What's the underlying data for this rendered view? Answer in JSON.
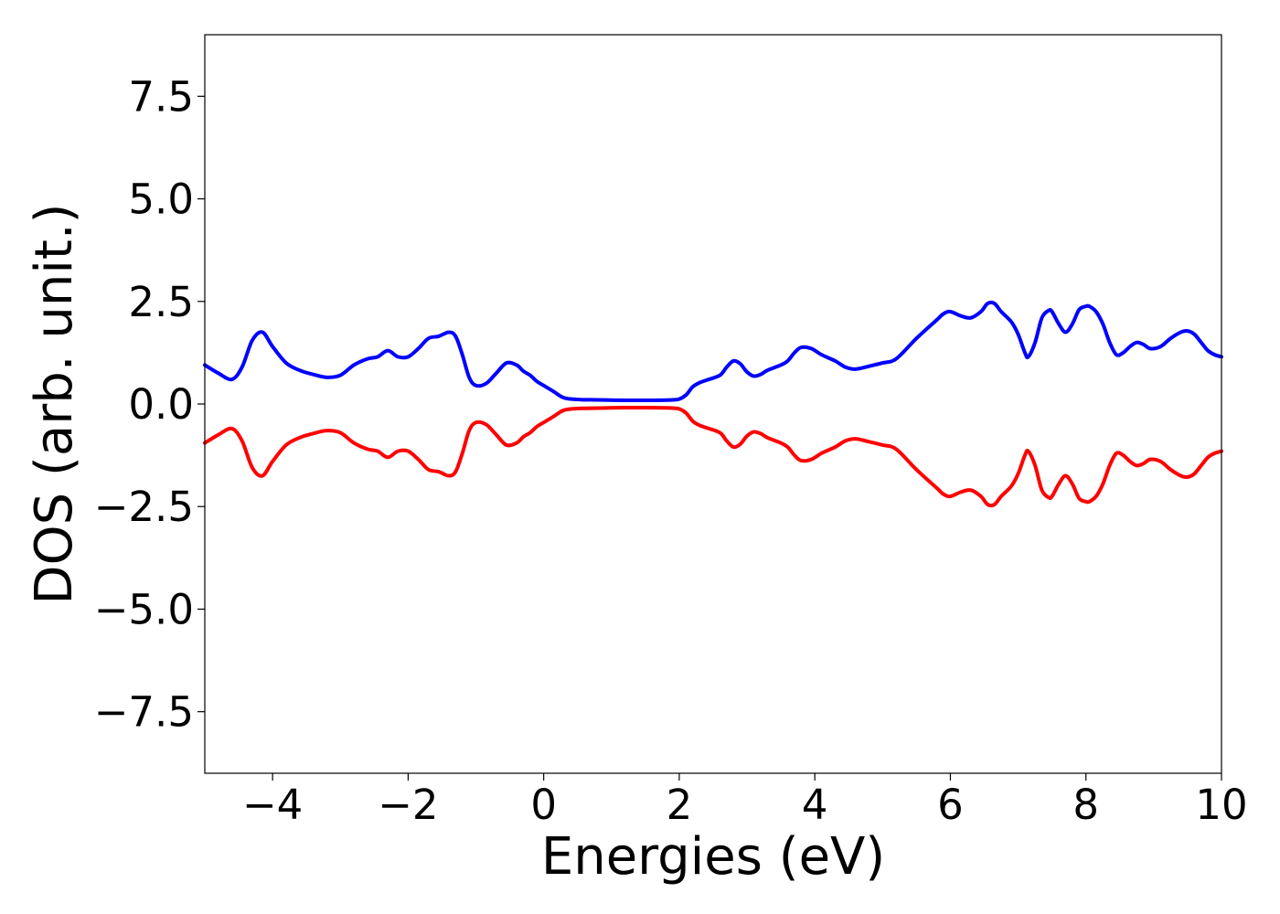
{
  "chart_data": {
    "type": "line",
    "title": "",
    "xlabel": "Energies (eV)",
    "ylabel": "DOS (arb. unit.)",
    "xlim": [
      -5,
      10
    ],
    "ylim": [
      -9,
      9
    ],
    "grid": false,
    "x_ticks": [
      -4,
      -2,
      0,
      2,
      4,
      6,
      8,
      10
    ],
    "x_tick_labels": [
      "−4",
      "−2",
      "0",
      "2",
      "4",
      "6",
      "8",
      "10"
    ],
    "y_ticks": [
      -7.5,
      -5.0,
      -2.5,
      0.0,
      2.5,
      5.0,
      7.5
    ],
    "y_tick_labels": [
      "−7.5",
      "−5.0",
      "−2.5",
      "0.0",
      "2.5",
      "5.0",
      "7.5"
    ],
    "series": [
      {
        "color": "#0000ff",
        "x": [
          -5.0,
          -4.8,
          -4.6,
          -4.45,
          -4.3,
          -4.15,
          -4.0,
          -3.8,
          -3.6,
          -3.4,
          -3.2,
          -3.0,
          -2.8,
          -2.6,
          -2.45,
          -2.3,
          -2.15,
          -2.0,
          -1.85,
          -1.7,
          -1.55,
          -1.4,
          -1.3,
          -1.2,
          -1.1,
          -1.0,
          -0.85,
          -0.7,
          -0.55,
          -0.4,
          -0.3,
          -0.2,
          -0.1,
          0.0,
          0.15,
          0.3,
          0.5,
          0.8,
          1.2,
          1.6,
          1.9,
          2.0,
          2.1,
          2.2,
          2.3,
          2.4,
          2.6,
          2.7,
          2.8,
          2.9,
          3.0,
          3.1,
          3.2,
          3.3,
          3.5,
          3.6,
          3.7,
          3.8,
          3.95,
          4.1,
          4.3,
          4.45,
          4.6,
          4.8,
          5.0,
          5.2,
          5.5,
          5.8,
          5.9,
          6.0,
          6.15,
          6.3,
          6.45,
          6.55,
          6.65,
          6.75,
          6.9,
          7.0,
          7.1,
          7.15,
          7.25,
          7.35,
          7.45,
          7.5,
          7.6,
          7.7,
          7.8,
          7.9,
          8.0,
          8.05,
          8.15,
          8.25,
          8.35,
          8.45,
          8.55,
          8.65,
          8.75,
          8.85,
          8.95,
          9.1,
          9.25,
          9.4,
          9.5,
          9.6,
          9.7,
          9.8,
          9.9,
          10.0
        ],
        "values": [
          0.95,
          0.75,
          0.6,
          0.9,
          1.55,
          1.75,
          1.4,
          1.0,
          0.82,
          0.72,
          0.65,
          0.7,
          0.95,
          1.1,
          1.15,
          1.3,
          1.15,
          1.15,
          1.35,
          1.6,
          1.65,
          1.75,
          1.65,
          1.2,
          0.65,
          0.45,
          0.5,
          0.75,
          1.0,
          0.95,
          0.8,
          0.7,
          0.55,
          0.45,
          0.3,
          0.15,
          0.11,
          0.1,
          0.09,
          0.09,
          0.1,
          0.12,
          0.22,
          0.42,
          0.52,
          0.58,
          0.7,
          0.9,
          1.05,
          0.98,
          0.78,
          0.68,
          0.72,
          0.82,
          0.95,
          1.05,
          1.25,
          1.38,
          1.35,
          1.2,
          1.05,
          0.9,
          0.85,
          0.92,
          1.0,
          1.1,
          1.6,
          2.05,
          2.2,
          2.25,
          2.15,
          2.1,
          2.25,
          2.45,
          2.45,
          2.25,
          2.0,
          1.7,
          1.25,
          1.15,
          1.5,
          2.1,
          2.28,
          2.25,
          1.95,
          1.75,
          1.95,
          2.3,
          2.38,
          2.38,
          2.25,
          1.95,
          1.5,
          1.2,
          1.25,
          1.4,
          1.5,
          1.45,
          1.35,
          1.4,
          1.6,
          1.75,
          1.78,
          1.7,
          1.5,
          1.3,
          1.2,
          1.15
        ]
      },
      {
        "color": "#ff0000",
        "x": [
          -5.0,
          -4.8,
          -4.6,
          -4.45,
          -4.3,
          -4.15,
          -4.0,
          -3.8,
          -3.6,
          -3.4,
          -3.2,
          -3.0,
          -2.8,
          -2.6,
          -2.45,
          -2.3,
          -2.15,
          -2.0,
          -1.85,
          -1.7,
          -1.55,
          -1.4,
          -1.3,
          -1.2,
          -1.1,
          -1.0,
          -0.85,
          -0.7,
          -0.55,
          -0.4,
          -0.3,
          -0.2,
          -0.1,
          0.0,
          0.15,
          0.3,
          0.5,
          0.8,
          1.2,
          1.6,
          1.9,
          2.0,
          2.1,
          2.2,
          2.3,
          2.4,
          2.6,
          2.7,
          2.8,
          2.9,
          3.0,
          3.1,
          3.2,
          3.3,
          3.5,
          3.6,
          3.7,
          3.8,
          3.95,
          4.1,
          4.3,
          4.45,
          4.6,
          4.8,
          5.0,
          5.2,
          5.5,
          5.8,
          5.9,
          6.0,
          6.15,
          6.3,
          6.45,
          6.55,
          6.65,
          6.75,
          6.9,
          7.0,
          7.1,
          7.15,
          7.25,
          7.35,
          7.45,
          7.5,
          7.6,
          7.7,
          7.8,
          7.9,
          8.0,
          8.05,
          8.15,
          8.25,
          8.35,
          8.45,
          8.55,
          8.65,
          8.75,
          8.85,
          8.95,
          9.1,
          9.25,
          9.4,
          9.5,
          9.6,
          9.7,
          9.8,
          9.9,
          10.0
        ],
        "values": [
          -0.95,
          -0.75,
          -0.6,
          -0.9,
          -1.55,
          -1.75,
          -1.4,
          -1.0,
          -0.82,
          -0.72,
          -0.65,
          -0.7,
          -0.95,
          -1.1,
          -1.15,
          -1.3,
          -1.15,
          -1.15,
          -1.35,
          -1.6,
          -1.65,
          -1.75,
          -1.65,
          -1.2,
          -0.65,
          -0.45,
          -0.5,
          -0.75,
          -1.0,
          -0.95,
          -0.8,
          -0.7,
          -0.55,
          -0.45,
          -0.3,
          -0.15,
          -0.11,
          -0.1,
          -0.09,
          -0.09,
          -0.1,
          -0.12,
          -0.22,
          -0.42,
          -0.52,
          -0.58,
          -0.7,
          -0.9,
          -1.05,
          -0.98,
          -0.78,
          -0.68,
          -0.72,
          -0.82,
          -0.95,
          -1.05,
          -1.25,
          -1.38,
          -1.35,
          -1.2,
          -1.05,
          -0.9,
          -0.85,
          -0.92,
          -1.0,
          -1.1,
          -1.6,
          -2.05,
          -2.2,
          -2.25,
          -2.15,
          -2.1,
          -2.25,
          -2.45,
          -2.45,
          -2.25,
          -2.0,
          -1.7,
          -1.25,
          -1.15,
          -1.5,
          -2.1,
          -2.28,
          -2.25,
          -1.95,
          -1.75,
          -1.95,
          -2.3,
          -2.38,
          -2.38,
          -2.25,
          -1.95,
          -1.5,
          -1.2,
          -1.25,
          -1.4,
          -1.5,
          -1.45,
          -1.35,
          -1.4,
          -1.6,
          -1.75,
          -1.78,
          -1.7,
          -1.5,
          -1.3,
          -1.2,
          -1.15
        ]
      }
    ]
  }
}
